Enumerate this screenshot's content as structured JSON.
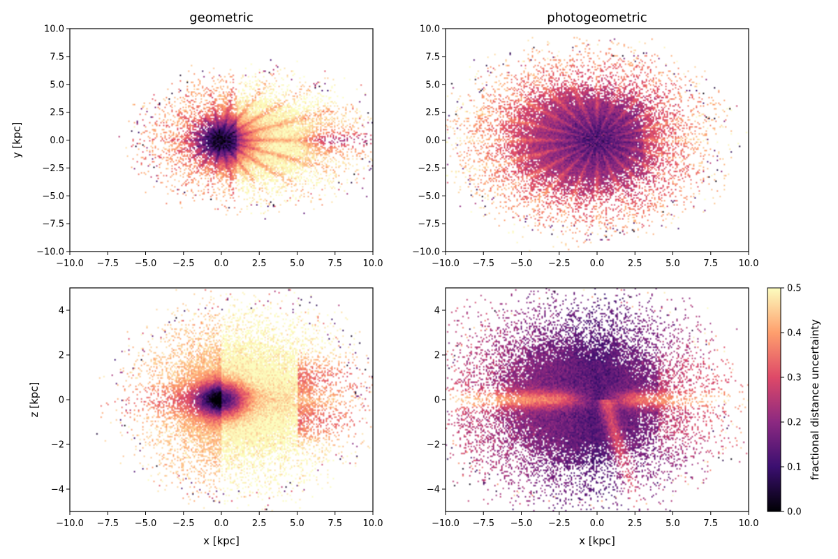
{
  "figure": {
    "colorbar": {
      "label": "fractional distance uncertainty",
      "range": [
        0.0,
        0.5
      ],
      "ticks": [
        "0.0",
        "0.1",
        "0.2",
        "0.3",
        "0.4",
        "0.5"
      ],
      "tick_values": [
        0.0,
        0.1,
        0.2,
        0.3,
        0.4,
        0.5
      ],
      "colormap": "magma",
      "colormap_stops": [
        "#000004",
        "#3b0f70",
        "#8c2981",
        "#de4968",
        "#fe9f6d",
        "#fcfdbf"
      ]
    }
  },
  "chart_data": [
    {
      "type": "heatmap",
      "title": "geometric",
      "xlabel": "",
      "ylabel": "y [kpc]",
      "xlim": [
        -10,
        10
      ],
      "ylim": [
        -10,
        10
      ],
      "xticks": [
        "−10.0",
        "−7.5",
        "−5.0",
        "−2.5",
        "0.0",
        "2.5",
        "5.0",
        "7.5",
        "10.0"
      ],
      "xtick_values": [
        -10,
        -7.5,
        -5,
        -2.5,
        0,
        2.5,
        5,
        7.5,
        10
      ],
      "yticks": [
        "−10.0",
        "−7.5",
        "−5.0",
        "−2.5",
        "0.0",
        "2.5",
        "5.0",
        "7.5",
        "10.0"
      ],
      "ytick_values": [
        -10,
        -7.5,
        -5,
        -2.5,
        0,
        2.5,
        5,
        7.5,
        10
      ],
      "model": "geometric",
      "plane": "xy"
    },
    {
      "type": "heatmap",
      "title": "photogeometric",
      "xlabel": "",
      "ylabel": "",
      "xlim": [
        -10,
        10
      ],
      "ylim": [
        -10,
        10
      ],
      "xticks": [
        "−10.0",
        "−7.5",
        "−5.0",
        "−2.5",
        "0.0",
        "2.5",
        "5.0",
        "7.5",
        "10.0"
      ],
      "xtick_values": [
        -10,
        -7.5,
        -5,
        -2.5,
        0,
        2.5,
        5,
        7.5,
        10
      ],
      "yticks": [
        "−10.0",
        "−7.5",
        "−5.0",
        "−2.5",
        "0.0",
        "2.5",
        "5.0",
        "7.5",
        "10.0"
      ],
      "ytick_values": [
        -10,
        -7.5,
        -5,
        -2.5,
        0,
        2.5,
        5,
        7.5,
        10
      ],
      "model": "photogeometric",
      "plane": "xy"
    },
    {
      "type": "heatmap",
      "title": "",
      "xlabel": "x [kpc]",
      "ylabel": "z [kpc]",
      "xlim": [
        -10,
        10
      ],
      "ylim": [
        -5,
        5
      ],
      "xticks": [
        "−10.0",
        "−7.5",
        "−5.0",
        "−2.5",
        "0.0",
        "2.5",
        "5.0",
        "7.5",
        "10.0"
      ],
      "xtick_values": [
        -10,
        -7.5,
        -5,
        -2.5,
        0,
        2.5,
        5,
        7.5,
        10
      ],
      "yticks": [
        "−4",
        "−2",
        "0",
        "2",
        "4"
      ],
      "ytick_values": [
        -4,
        -2,
        0,
        2,
        4
      ],
      "model": "geometric",
      "plane": "xz"
    },
    {
      "type": "heatmap",
      "title": "",
      "xlabel": "x [kpc]",
      "ylabel": "",
      "xlim": [
        -10,
        10
      ],
      "ylim": [
        -5,
        5
      ],
      "xticks": [
        "−10.0",
        "−7.5",
        "−5.0",
        "−2.5",
        "0.0",
        "2.5",
        "5.0",
        "7.5",
        "10.0"
      ],
      "xtick_values": [
        -10,
        -7.5,
        -5,
        -2.5,
        0,
        2.5,
        5,
        7.5,
        10
      ],
      "yticks": [
        "−4",
        "−2",
        "0",
        "2",
        "4"
      ],
      "ytick_values": [
        -4,
        -2,
        0,
        2,
        4
      ],
      "model": "photogeometric",
      "plane": "xz"
    }
  ]
}
